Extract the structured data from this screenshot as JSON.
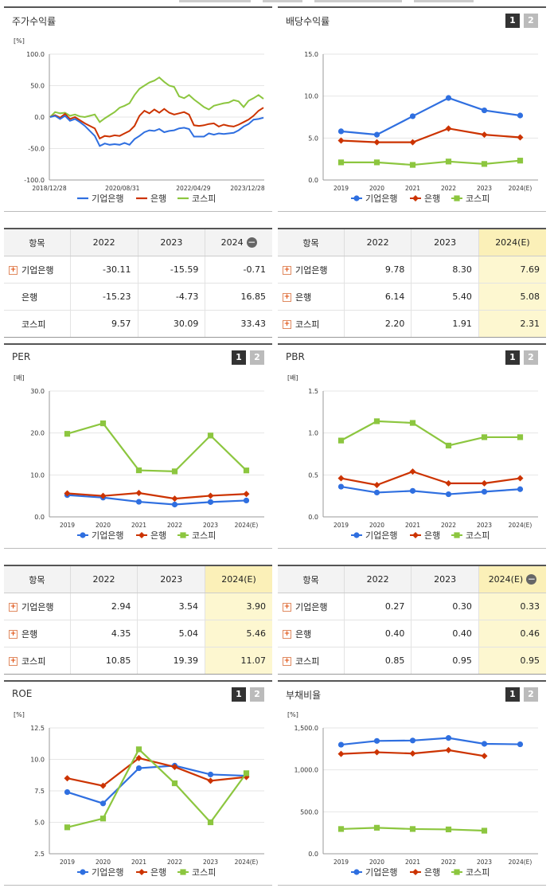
{
  "colors": {
    "blue": "#2f6fe0",
    "red": "#cc3300",
    "green": "#8cc63f"
  },
  "legend": [
    "기업은행",
    "은행",
    "코스피"
  ],
  "pager": [
    "1",
    "2"
  ],
  "panels": {
    "return": {
      "title": "주가수익률"
    },
    "dividend": {
      "title": "배당수익률"
    },
    "per": {
      "title": "PER"
    },
    "pbr": {
      "title": "PBR"
    },
    "roe": {
      "title": "ROE"
    },
    "debt": {
      "title": "부채비율"
    }
  },
  "tables": {
    "return": {
      "headers": [
        "항목",
        "2022",
        "2023",
        "2024"
      ],
      "rows": [
        {
          "name": "기업은행",
          "plus": true,
          "values": [
            "-30.11",
            "-15.59",
            "-0.71"
          ]
        },
        {
          "name": "은행",
          "plus": false,
          "values": [
            "-15.23",
            "-4.73",
            "16.85"
          ]
        },
        {
          "name": "코스피",
          "plus": false,
          "values": [
            "9.57",
            "30.09",
            "33.43"
          ]
        }
      ]
    },
    "dividend": {
      "headers": [
        "항목",
        "2022",
        "2023",
        "2024(E)"
      ],
      "rows": [
        {
          "name": "기업은행",
          "plus": true,
          "values": [
            "9.78",
            "8.30",
            "7.69"
          ]
        },
        {
          "name": "은행",
          "plus": true,
          "values": [
            "6.14",
            "5.40",
            "5.08"
          ]
        },
        {
          "name": "코스피",
          "plus": true,
          "values": [
            "2.20",
            "1.91",
            "2.31"
          ]
        }
      ]
    },
    "per": {
      "headers": [
        "항목",
        "2022",
        "2023",
        "2024(E)"
      ],
      "rows": [
        {
          "name": "기업은행",
          "plus": true,
          "values": [
            "2.94",
            "3.54",
            "3.90"
          ]
        },
        {
          "name": "은행",
          "plus": true,
          "values": [
            "4.35",
            "5.04",
            "5.46"
          ]
        },
        {
          "name": "코스피",
          "plus": true,
          "values": [
            "10.85",
            "19.39",
            "11.07"
          ]
        }
      ]
    },
    "pbr": {
      "headers": [
        "항목",
        "2022",
        "2023",
        "2024(E)"
      ],
      "rows": [
        {
          "name": "기업은행",
          "plus": true,
          "values": [
            "0.27",
            "0.30",
            "0.33"
          ]
        },
        {
          "name": "은행",
          "plus": true,
          "values": [
            "0.40",
            "0.40",
            "0.46"
          ]
        },
        {
          "name": "코스피",
          "plus": true,
          "values": [
            "0.85",
            "0.95",
            "0.95"
          ]
        }
      ]
    }
  },
  "chart_data": [
    {
      "id": "return",
      "type": "line",
      "unit": "[%]",
      "ylim": [
        -100,
        100
      ],
      "yticks": [
        "100.0",
        "50.0",
        "0.0",
        "-50.0",
        "-100.0"
      ],
      "xticks": [
        "2018/12/28",
        "2020/08/31",
        "2022/04/29",
        "2023/12/28"
      ],
      "series": [
        {
          "name": "기업은행",
          "color": "#2f6fe0",
          "values": [
            0,
            2,
            -3,
            2,
            -6,
            -3,
            -8,
            -14,
            -22,
            -30,
            -46,
            -42,
            -44,
            -43,
            -44,
            -41,
            -44,
            -35,
            -30,
            -24,
            -21,
            -22,
            -19,
            -24,
            -22,
            -21,
            -18,
            -17,
            -19,
            -31,
            -31,
            -31,
            -26,
            -28,
            -26,
            -27,
            -26,
            -25,
            -21,
            -15,
            -11,
            -4,
            -3,
            -1
          ]
        },
        {
          "name": "은행",
          "color": "#cc3300",
          "values": [
            0,
            3,
            -1,
            5,
            -3,
            0,
            -5,
            -10,
            -14,
            -18,
            -34,
            -30,
            -31,
            -29,
            -30,
            -26,
            -22,
            -14,
            2,
            10,
            6,
            12,
            7,
            13,
            7,
            4,
            6,
            8,
            4,
            -13,
            -14,
            -13,
            -11,
            -10,
            -15,
            -12,
            -14,
            -15,
            -12,
            -8,
            -4,
            2,
            10,
            15
          ]
        },
        {
          "name": "코스피",
          "color": "#8cc63f",
          "values": [
            0,
            8,
            6,
            7,
            2,
            4,
            1,
            0,
            2,
            4,
            -8,
            -2,
            3,
            8,
            15,
            18,
            22,
            35,
            45,
            50,
            55,
            58,
            63,
            56,
            50,
            48,
            33,
            30,
            35,
            28,
            22,
            16,
            12,
            18,
            20,
            22,
            23,
            27,
            25,
            16,
            26,
            30,
            35,
            29
          ]
        }
      ]
    },
    {
      "id": "dividend",
      "type": "line",
      "unit": "",
      "ylim": [
        0,
        15
      ],
      "yticks": [
        "15.0",
        "10.0",
        "5.0",
        "0.0"
      ],
      "categories": [
        "2019",
        "2020",
        "2021",
        "2022",
        "2023",
        "2024(E)"
      ],
      "series": [
        {
          "name": "기업은행",
          "color": "#2f6fe0",
          "marker": "circle",
          "values": [
            5.8,
            5.4,
            7.6,
            9.78,
            8.3,
            7.69
          ]
        },
        {
          "name": "은행",
          "color": "#cc3300",
          "marker": "diamond",
          "values": [
            4.7,
            4.5,
            4.5,
            6.14,
            5.4,
            5.08
          ]
        },
        {
          "name": "코스피",
          "color": "#8cc63f",
          "marker": "square",
          "values": [
            2.1,
            2.1,
            1.8,
            2.2,
            1.91,
            2.31
          ]
        }
      ]
    },
    {
      "id": "per",
      "type": "line",
      "unit": "[배]",
      "ylim": [
        0,
        30
      ],
      "yticks": [
        "30.0",
        "20.0",
        "10.0",
        "0.0"
      ],
      "categories": [
        "2019",
        "2020",
        "2021",
        "2022",
        "2023",
        "2024(E)"
      ],
      "series": [
        {
          "name": "기업은행",
          "color": "#2f6fe0",
          "marker": "circle",
          "values": [
            5.2,
            4.6,
            3.6,
            2.94,
            3.54,
            3.9
          ]
        },
        {
          "name": "은행",
          "color": "#cc3300",
          "marker": "diamond",
          "values": [
            5.6,
            5.0,
            5.7,
            4.35,
            5.04,
            5.46
          ]
        },
        {
          "name": "코스피",
          "color": "#8cc63f",
          "marker": "square",
          "values": [
            19.8,
            22.3,
            11.1,
            10.85,
            19.39,
            11.07
          ]
        }
      ]
    },
    {
      "id": "pbr",
      "type": "line",
      "unit": "[배]",
      "ylim": [
        0,
        1.5
      ],
      "yticks": [
        "1.5",
        "1.0",
        "0.5",
        "0.0"
      ],
      "categories": [
        "2019",
        "2020",
        "2021",
        "2022",
        "2023",
        "2024(E)"
      ],
      "series": [
        {
          "name": "기업은행",
          "color": "#2f6fe0",
          "marker": "circle",
          "values": [
            0.36,
            0.29,
            0.31,
            0.27,
            0.3,
            0.33
          ]
        },
        {
          "name": "은행",
          "color": "#cc3300",
          "marker": "diamond",
          "values": [
            0.46,
            0.38,
            0.54,
            0.4,
            0.4,
            0.46
          ]
        },
        {
          "name": "코스피",
          "color": "#8cc63f",
          "marker": "square",
          "values": [
            0.91,
            1.14,
            1.12,
            0.85,
            0.95,
            0.95
          ]
        }
      ]
    },
    {
      "id": "roe",
      "type": "line",
      "unit": "[%]",
      "ylim": [
        2.5,
        12.5
      ],
      "yticks": [
        "12.5",
        "10.0",
        "7.5",
        "5.0",
        "2.5"
      ],
      "categories": [
        "2019",
        "2020",
        "2021",
        "2022",
        "2023",
        "2024(E)"
      ],
      "series": [
        {
          "name": "기업은행",
          "color": "#2f6fe0",
          "marker": "circle",
          "values": [
            7.4,
            6.5,
            9.3,
            9.5,
            8.8,
            8.7
          ]
        },
        {
          "name": "은행",
          "color": "#cc3300",
          "marker": "diamond",
          "values": [
            8.5,
            7.9,
            10.1,
            9.4,
            8.3,
            8.6
          ]
        },
        {
          "name": "코스피",
          "color": "#8cc63f",
          "marker": "square",
          "values": [
            4.6,
            5.3,
            10.8,
            8.1,
            5.0,
            8.9
          ]
        }
      ]
    },
    {
      "id": "debt",
      "type": "line",
      "unit": "[%]",
      "ylim": [
        0,
        1500
      ],
      "yticks": [
        "1,500.0",
        "1,000.0",
        "500.0",
        "0.0"
      ],
      "categories": [
        "2019",
        "2020",
        "2021",
        "2022",
        "2023",
        "2024(E)"
      ],
      "series": [
        {
          "name": "기업은행",
          "color": "#2f6fe0",
          "marker": "circle",
          "values": [
            1300,
            1345,
            1350,
            1380,
            1310,
            1305
          ]
        },
        {
          "name": "은행",
          "color": "#cc3300",
          "marker": "diamond",
          "values": [
            1190,
            1210,
            1195,
            1235,
            1165,
            null
          ]
        },
        {
          "name": "코스피",
          "color": "#8cc63f",
          "marker": "square",
          "values": [
            295,
            310,
            295,
            290,
            275,
            null
          ]
        }
      ]
    }
  ]
}
